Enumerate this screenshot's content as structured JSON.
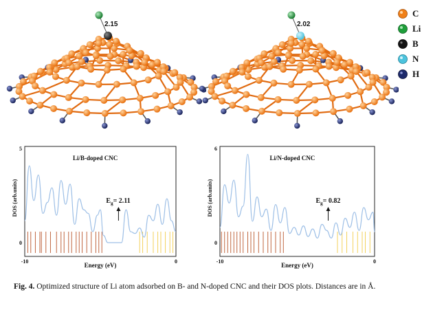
{
  "figure": {
    "left_molecule": {
      "distance_label": "2.15"
    },
    "right_molecule": {
      "distance_label": "2.02"
    },
    "legend": [
      {
        "symbol": "C",
        "color": "#f08018"
      },
      {
        "symbol": "Li",
        "color": "#1e9e3a"
      },
      {
        "symbol": "B",
        "color": "#141414"
      },
      {
        "symbol": "N",
        "color": "#4cc3dd"
      },
      {
        "symbol": "H",
        "color": "#1d2a6b"
      }
    ]
  },
  "chart_data": [
    {
      "type": "line",
      "title": "Li/B-doped CNC",
      "xlabel": "Energy (eV)",
      "ylabel": "DOS (arb.units)",
      "xlim": [
        -10,
        0
      ],
      "ylim": [
        0,
        5
      ],
      "x_ticks": [
        "-10",
        "0"
      ],
      "y_ticks": [
        "5",
        "0"
      ],
      "annotation": {
        "text_main": "E",
        "text_sub": "g",
        "text_value": "= 2.11",
        "x": -3.8
      },
      "series": [
        {
          "x": [
            -10,
            -9.7,
            -9.4,
            -9.1,
            -8.8,
            -8.5,
            -8.2,
            -7.9,
            -7.6,
            -7.3,
            -7.0,
            -6.7,
            -6.4,
            -6.1,
            -5.8,
            -5.5,
            -5.2,
            -5.0,
            -4.8,
            -4.5,
            -4.2,
            -3.9,
            -3.6,
            -3.3,
            -3.0,
            -2.7,
            -2.4,
            -2.1,
            -1.8,
            -1.5,
            -1.2,
            -0.9,
            -0.6,
            -0.3,
            0
          ],
          "y": [
            1.2,
            4.2,
            2.3,
            3.7,
            1.6,
            2.2,
            3.0,
            1.5,
            3.4,
            2.1,
            3.2,
            1.0,
            2.4,
            1.8,
            1.6,
            0.6,
            1.5,
            1.8,
            0.4,
            0.0,
            0.0,
            0.0,
            0.0,
            1.8,
            0.6,
            0.5,
            0.8,
            0.3,
            1.5,
            1.2,
            2.1,
            1.0,
            2.4,
            1.2,
            0.6
          ]
        }
      ],
      "spectrum_lines": {
        "occupied": [
          -9.8,
          -9.6,
          -9.3,
          -9.0,
          -8.9,
          -8.6,
          -8.3,
          -7.9,
          -7.6,
          -7.4,
          -7.1,
          -6.9,
          -6.6,
          -6.4,
          -6.2,
          -5.9,
          -5.6,
          -5.3,
          -5.1,
          -4.9
        ],
        "virtual": [
          -2.4,
          -2.2,
          -1.9,
          -1.5,
          -1.2,
          -1.0,
          -0.7,
          -0.4,
          -0.2
        ]
      }
    },
    {
      "type": "line",
      "title": "Li/N-doped CNC",
      "xlabel": "Energy (eV)",
      "ylabel": "DOS (arb.units)",
      "xlim": [
        -10,
        0
      ],
      "ylim": [
        0,
        6
      ],
      "x_ticks": [
        "-10",
        "0"
      ],
      "y_ticks": [
        "6",
        "0"
      ],
      "annotation": {
        "text_main": "E",
        "text_sub": "g",
        "text_value": "= 0.82",
        "x": -3.0
      },
      "series": [
        {
          "x": [
            -10,
            -9.7,
            -9.4,
            -9.1,
            -8.8,
            -8.5,
            -8.2,
            -7.9,
            -7.6,
            -7.3,
            -7.0,
            -6.7,
            -6.4,
            -6.1,
            -5.8,
            -5.5,
            -5.2,
            -4.9,
            -4.6,
            -4.3,
            -4.0,
            -3.7,
            -3.4,
            -3.1,
            -2.8,
            -2.5,
            -2.2,
            -1.9,
            -1.6,
            -1.3,
            -1.0,
            -0.7,
            -0.4,
            -0.1,
            0
          ],
          "y": [
            1.0,
            3.8,
            2.6,
            4.1,
            1.7,
            2.4,
            5.8,
            1.4,
            3.0,
            1.7,
            2.2,
            0.8,
            2.5,
            1.3,
            2.3,
            0.6,
            1.0,
            0.5,
            1.1,
            0.4,
            0.9,
            0.3,
            1.2,
            0.8,
            0.3,
            1.3,
            0.5,
            1.6,
            1.0,
            2.0,
            0.8,
            2.3,
            1.5,
            2.0,
            0.7
          ]
        }
      ],
      "spectrum_lines": {
        "occupied": [
          -9.9,
          -9.7,
          -9.5,
          -9.3,
          -9.1,
          -8.9,
          -8.7,
          -8.5,
          -8.2,
          -8.0,
          -7.8,
          -7.5,
          -7.2,
          -6.9,
          -6.7,
          -6.4,
          -6.1,
          -5.9
        ],
        "virtual": [
          -2.4,
          -2.1,
          -1.8,
          -1.4,
          -1.1,
          -0.8,
          -0.6,
          -0.3
        ]
      }
    }
  ],
  "caption": {
    "label": "Fig. 4.",
    "text": " Optimized structure of Li atom adsorbed on B- and N-doped CNC and their DOS plots. Distances are in Å."
  }
}
